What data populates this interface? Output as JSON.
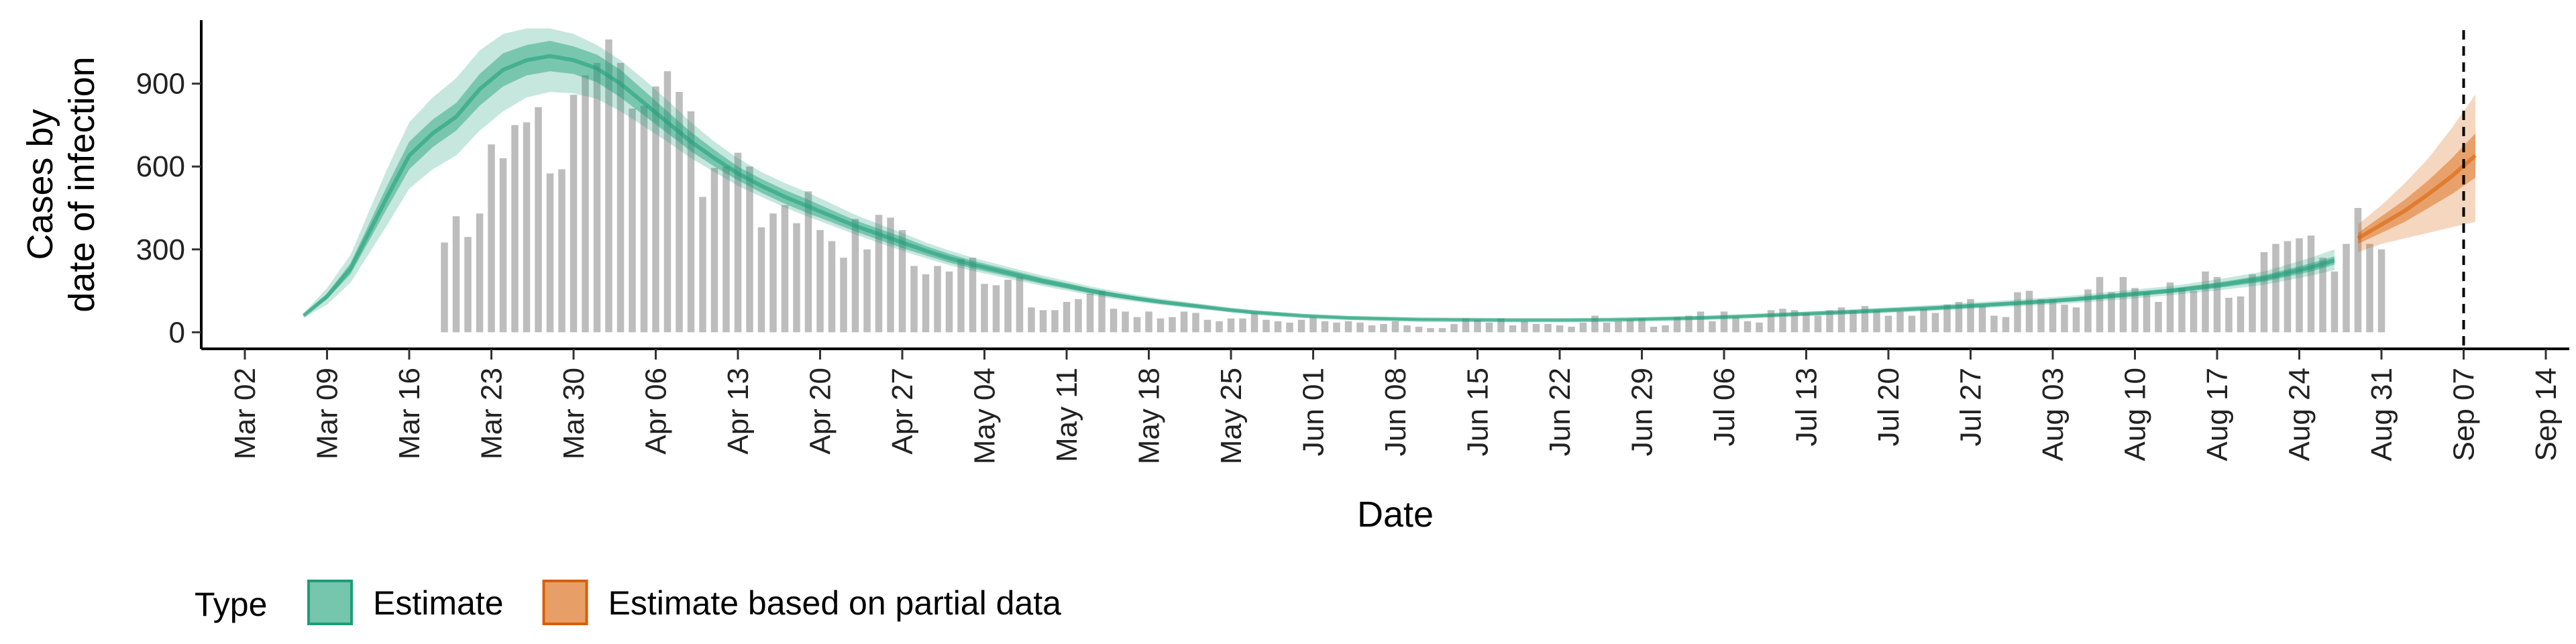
{
  "chart_data": {
    "type": "bar+ribbon",
    "xlabel": "Date",
    "ylabel_lines": [
      "Cases by",
      "date of infection"
    ],
    "x_ticks": [
      "Mar 02",
      "Mar 09",
      "Mar 16",
      "Mar 23",
      "Mar 30",
      "Apr 06",
      "Apr 13",
      "Apr 20",
      "Apr 27",
      "May 04",
      "May 11",
      "May 18",
      "May 25",
      "Jun 01",
      "Jun 08",
      "Jun 15",
      "Jun 22",
      "Jun 29",
      "Jul 06",
      "Jul 13",
      "Jul 20",
      "Jul 27",
      "Aug 03",
      "Aug 10",
      "Aug 17",
      "Aug 24",
      "Aug 31",
      "Sep 07",
      "Sep 14"
    ],
    "x_range_days": [
      -2,
      198
    ],
    "y_ticks": [
      0,
      300,
      600,
      900
    ],
    "ylim": [
      -60,
      1130
    ],
    "bars_start_label": "Mar 19",
    "bars": [
      325,
      420,
      345,
      430,
      680,
      630,
      750,
      760,
      815,
      575,
      590,
      860,
      930,
      975,
      1060,
      975,
      810,
      820,
      890,
      945,
      870,
      800,
      490,
      595,
      600,
      650,
      600,
      380,
      430,
      460,
      395,
      510,
      370,
      330,
      270,
      410,
      300,
      425,
      415,
      370,
      240,
      210,
      240,
      220,
      265,
      270,
      175,
      170,
      190,
      200,
      90,
      80,
      80,
      110,
      120,
      140,
      150,
      85,
      75,
      55,
      75,
      50,
      55,
      75,
      70,
      45,
      40,
      50,
      50,
      70,
      45,
      40,
      35,
      45,
      55,
      40,
      35,
      40,
      35,
      25,
      30,
      40,
      25,
      20,
      15,
      15,
      30,
      50,
      45,
      35,
      50,
      25,
      40,
      30,
      30,
      25,
      20,
      35,
      60,
      35,
      40,
      45,
      50,
      20,
      25,
      55,
      60,
      75,
      40,
      75,
      55,
      40,
      35,
      80,
      85,
      80,
      70,
      60,
      80,
      90,
      80,
      95,
      80,
      60,
      75,
      60,
      85,
      70,
      100,
      110,
      120,
      95,
      60,
      55,
      145,
      150,
      120,
      120,
      100,
      90,
      155,
      200,
      145,
      200,
      160,
      145,
      110,
      180,
      160,
      150,
      220,
      200,
      125,
      130,
      210,
      290,
      320,
      330,
      340,
      350,
      270,
      220,
      320,
      450,
      320,
      300
    ],
    "series": [
      {
        "name": "Estimate",
        "color": "#1b9e77",
        "x_days": [
          5,
          7,
          9,
          12,
          14,
          16,
          18,
          20,
          22,
          24,
          26,
          28,
          30,
          32,
          34,
          36,
          38,
          40,
          42,
          44,
          46,
          48,
          50,
          52,
          54,
          56,
          58,
          60,
          62,
          64,
          66,
          68,
          70,
          72,
          74,
          76,
          78,
          80,
          82,
          84,
          86,
          88,
          90,
          92,
          94,
          96,
          98,
          100,
          104,
          108,
          112,
          116,
          120,
          124,
          128,
          132,
          136,
          140,
          144,
          148,
          152,
          156,
          160,
          164,
          168,
          172,
          176,
          178
        ],
        "median": [
          60,
          130,
          230,
          480,
          640,
          720,
          780,
          880,
          950,
          985,
          1000,
          985,
          955,
          900,
          830,
          760,
          690,
          630,
          575,
          530,
          490,
          455,
          420,
          385,
          355,
          325,
          295,
          268,
          245,
          225,
          205,
          185,
          168,
          150,
          135,
          122,
          110,
          100,
          90,
          80,
          72,
          66,
          60,
          56,
          52,
          50,
          48,
          46,
          45,
          44,
          44,
          45,
          48,
          52,
          58,
          65,
          72,
          80,
          88,
          98,
          108,
          120,
          135,
          150,
          170,
          195,
          235,
          260
        ],
        "lower50": [
          57,
          120,
          210,
          440,
          590,
          670,
          730,
          820,
          890,
          930,
          945,
          935,
          905,
          850,
          785,
          720,
          655,
          600,
          550,
          505,
          465,
          430,
          398,
          365,
          335,
          305,
          278,
          252,
          231,
          212,
          193,
          174,
          158,
          141,
          127,
          115,
          104,
          94,
          85,
          76,
          68,
          62,
          57,
          53,
          49,
          47,
          45,
          44,
          43,
          42,
          42,
          43,
          45,
          49,
          55,
          61,
          68,
          75,
          83,
          92,
          102,
          113,
          127,
          142,
          160,
          183,
          220,
          245
        ],
        "upper50": [
          63,
          140,
          250,
          520,
          690,
          770,
          830,
          935,
          1010,
          1040,
          1055,
          1035,
          1005,
          950,
          875,
          800,
          725,
          660,
          600,
          555,
          515,
          480,
          442,
          405,
          375,
          345,
          312,
          284,
          259,
          238,
          217,
          196,
          178,
          159,
          143,
          129,
          116,
          106,
          95,
          84,
          76,
          70,
          63,
          59,
          55,
          53,
          51,
          49,
          47,
          46,
          46,
          47,
          51,
          55,
          61,
          69,
          76,
          85,
          93,
          104,
          114,
          127,
          143,
          158,
          180,
          207,
          250,
          275
        ],
        "lower90": [
          52,
          100,
          180,
          380,
          520,
          590,
          640,
          730,
          800,
          850,
          870,
          865,
          845,
          800,
          745,
          690,
          630,
          580,
          530,
          490,
          452,
          418,
          386,
          354,
          324,
          295,
          268,
          243,
          222,
          204,
          185,
          167,
          151,
          135,
          121,
          110,
          99,
          90,
          81,
          72,
          64,
          58,
          53,
          49,
          46,
          44,
          42,
          41,
          40,
          40,
          40,
          41,
          43,
          46,
          52,
          58,
          64,
          71,
          78,
          87,
          96,
          106,
          119,
          134,
          151,
          172,
          205,
          225
        ],
        "upper90": [
          68,
          160,
          280,
          580,
          760,
          850,
          920,
          1020,
          1080,
          1100,
          1100,
          1080,
          1040,
          985,
          915,
          840,
          760,
          690,
          630,
          580,
          540,
          505,
          465,
          425,
          392,
          360,
          325,
          296,
          270,
          248,
          226,
          205,
          186,
          166,
          150,
          135,
          122,
          111,
          100,
          89,
          80,
          73,
          66,
          62,
          58,
          56,
          54,
          52,
          50,
          49,
          49,
          50,
          54,
          58,
          65,
          73,
          81,
          90,
          99,
          110,
          121,
          134,
          151,
          167,
          191,
          220,
          270,
          300
        ]
      },
      {
        "name": "Estimate based on partial data",
        "color": "#d95f02",
        "x_days": [
          180,
          182,
          184,
          186,
          188,
          190
        ],
        "median": [
          340,
          390,
          440,
          500,
          565,
          640
        ],
        "lower50": [
          320,
          360,
          400,
          450,
          500,
          560
        ],
        "upper50": [
          360,
          420,
          480,
          550,
          630,
          720
        ],
        "lower90": [
          290,
          320,
          340,
          360,
          380,
          400
        ],
        "upper90": [
          390,
          460,
          540,
          630,
          740,
          860
        ]
      }
    ],
    "vline_label": "Sep 07",
    "legend": {
      "title": "Type",
      "position": "bottom-left"
    }
  }
}
